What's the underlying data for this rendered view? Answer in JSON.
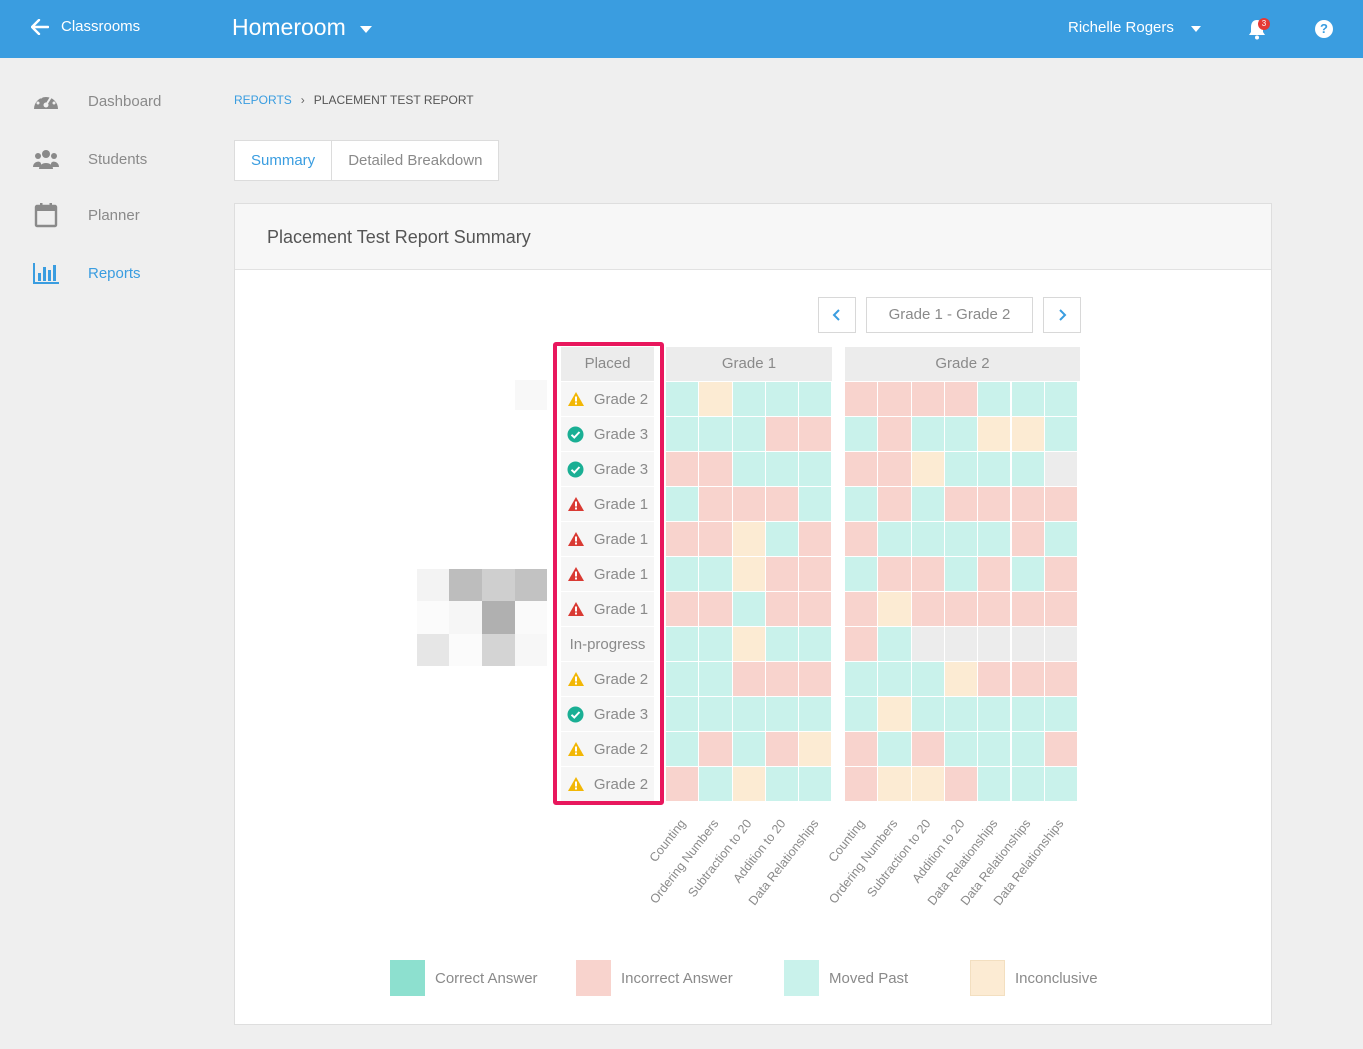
{
  "topbar": {
    "back_label": "Classrooms",
    "class_name": "Homeroom",
    "user_name": "Richelle Rogers",
    "notification_count": "3",
    "help_label": "?"
  },
  "sidebar": {
    "items": [
      {
        "label": "Dashboard",
        "icon": "dashboard-icon"
      },
      {
        "label": "Students",
        "icon": "students-icon"
      },
      {
        "label": "Planner",
        "icon": "calendar-icon"
      },
      {
        "label": "Reports",
        "icon": "bar-chart-icon",
        "active": true
      }
    ]
  },
  "breadcrumb": {
    "parent": "REPORTS",
    "current": "PLACEMENT TEST REPORT"
  },
  "tabs": [
    "Summary",
    "Detailed Breakdown"
  ],
  "card": {
    "title": "Placement Test Report Summary"
  },
  "pager": {
    "label": "Grade 1 - Grade 2"
  },
  "table": {
    "placed_header": "Placed",
    "grade_headers": [
      "Grade 1",
      "Grade 2"
    ],
    "placed": [
      {
        "status": "warning",
        "text": "Grade 2"
      },
      {
        "status": "check",
        "text": "Grade 3"
      },
      {
        "status": "check",
        "text": "Grade 3"
      },
      {
        "status": "alert",
        "text": "Grade 1"
      },
      {
        "status": "alert",
        "text": "Grade 1"
      },
      {
        "status": "alert",
        "text": "Grade 1"
      },
      {
        "status": "alert",
        "text": "Grade 1"
      },
      {
        "status": "none",
        "text": "In-progress"
      },
      {
        "status": "warning",
        "text": "Grade 2"
      },
      {
        "status": "check",
        "text": "Grade 3"
      },
      {
        "status": "warning",
        "text": "Grade 2"
      },
      {
        "status": "warning",
        "text": "Grade 2"
      }
    ],
    "columns_g1": [
      "Counting",
      "Ordering Numbers",
      "Subtraction to 20",
      "Addition to 20",
      "Data Relationships"
    ],
    "columns_g2": [
      "Counting",
      "Ordering Numbers",
      "Subtraction to 20",
      "Addition to 20",
      "Data Relationships",
      "Data Relationships",
      "Data Relationships"
    ],
    "grid_g1": [
      "MIMMM",
      "MMMXX",
      "XXMMM",
      "MXXXM",
      "XXIMX",
      "MMIXX",
      "XXMXX",
      "MMIMM",
      "MMXXX",
      "MMMMM",
      "MXMXI",
      "XMIMM"
    ],
    "grid_g2": [
      "XXXXMMM",
      "MXMMIIM",
      "XXIMMMN",
      "MXMXXXX",
      "XMMMMXM",
      "MXXMXMX",
      "XIXXXXX",
      "XMNNNNN",
      "MMMIXXX",
      "MIMMMMM",
      "XMXMMMX",
      "XIIXMMM"
    ]
  },
  "legend": [
    {
      "label": "Correct Answer",
      "color": "#8de0cf"
    },
    {
      "label": "Incorrect Answer",
      "color": "#f8d3cd"
    },
    {
      "label": "Moved Past",
      "color": "#c9f2eb"
    },
    {
      "label": "Inconclusive",
      "color": "#fcebd3"
    }
  ],
  "colors": {
    "accent": "#3a9de0",
    "highlight": "#e8175d",
    "moved_past": "#c9f2eb",
    "incorrect": "#f8d3cd",
    "inconclusive": "#fcebd3",
    "not_taken": "#ececec",
    "warning": "#f2b705",
    "check": "#1aaf94",
    "alert": "#d93a33"
  }
}
